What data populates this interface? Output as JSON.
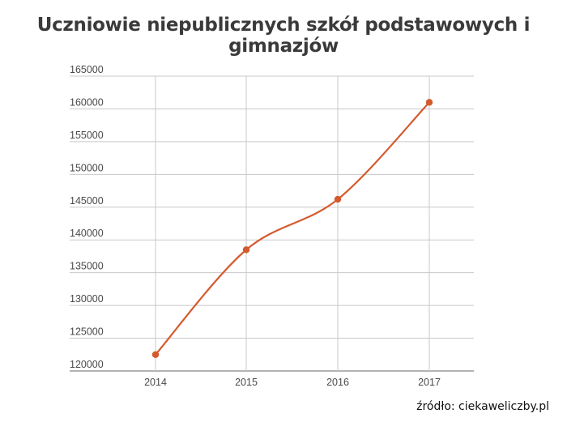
{
  "page": {
    "title": "Uczniowie niepublicznych szkół podstawowych i gimnazjów",
    "source": "źródło: ciekaweliczby.pl"
  },
  "colors": {
    "line": "#d45a2e",
    "grid": "#c8c8c8",
    "axis": "#9a9a9a"
  },
  "chart_data": {
    "type": "line",
    "title": "Uczniowie niepublicznych szkół podstawowych i gimnazjów",
    "x": [
      "2014",
      "2015",
      "2016",
      "2017"
    ],
    "series": [
      {
        "values": [
          122500,
          138500,
          146200,
          161000
        ]
      }
    ],
    "ylim": [
      120000,
      165000
    ],
    "yticks": [
      120000,
      125000,
      130000,
      135000,
      140000,
      145000,
      150000,
      155000,
      160000,
      165000
    ],
    "ytick_labels": [
      "120000",
      "125000",
      "130000",
      "135000",
      "140000",
      "145000",
      "150000",
      "155000",
      "160000",
      "165000"
    ],
    "grid": true,
    "smooth": true,
    "markers": true
  }
}
